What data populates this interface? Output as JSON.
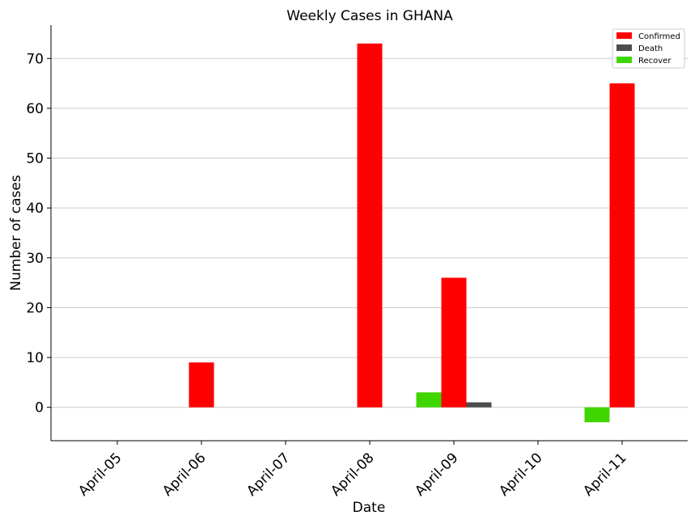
{
  "chart_data": {
    "type": "bar",
    "title": "Weekly Cases in GHANA",
    "xlabel": "Date",
    "ylabel": "Number of cases",
    "categories": [
      "April-05",
      "April-06",
      "April-07",
      "April-08",
      "April-09",
      "April-10",
      "April-11"
    ],
    "series": [
      {
        "name": "Confirmed",
        "color": "#ff0000",
        "values": [
          0,
          9,
          0,
          73,
          26,
          0,
          65
        ]
      },
      {
        "name": "Death",
        "color": "#4d4d4d",
        "values": [
          0,
          0,
          0,
          0,
          1,
          0,
          0
        ]
      },
      {
        "name": "Recover",
        "color": "#3fd600",
        "values": [
          0,
          0,
          0,
          0,
          3,
          0,
          -3
        ]
      }
    ],
    "ylim": [
      -6.7,
      76.7
    ],
    "yticks": [
      0,
      10,
      20,
      30,
      40,
      50,
      60,
      70
    ],
    "grid": "horizontal",
    "legend_position": "top-right",
    "xtick_rotation": 45
  }
}
